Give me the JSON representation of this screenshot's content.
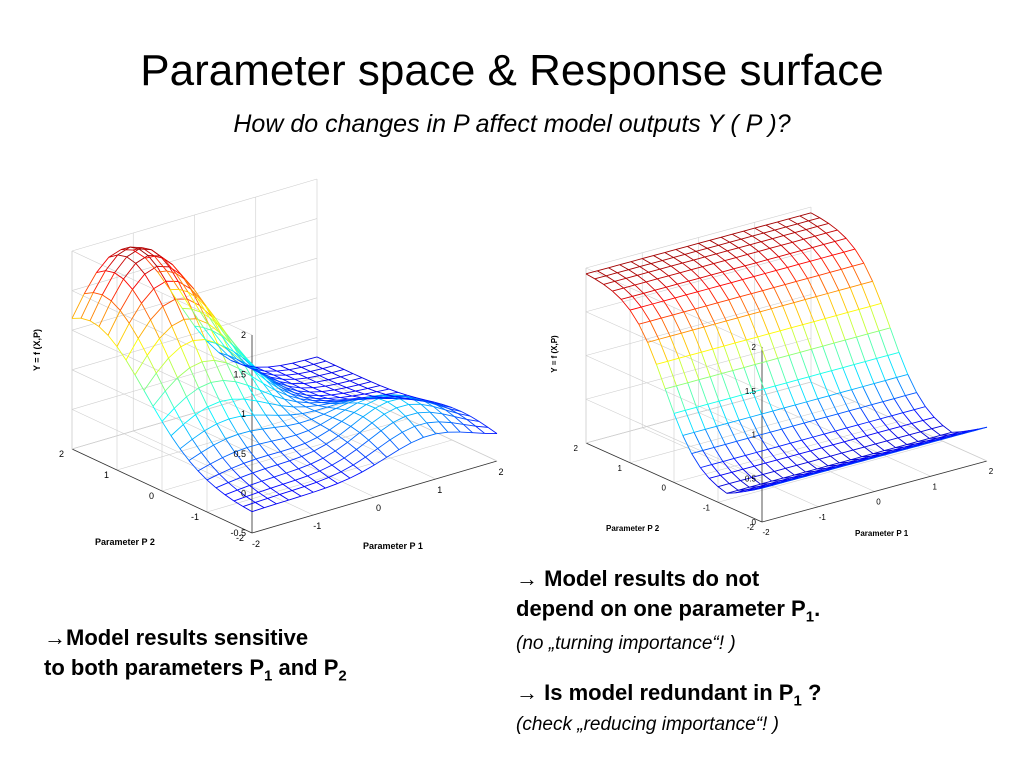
{
  "slide": {
    "title": "Parameter space & Response surface",
    "subtitle": "How do changes in P affect model outputs Y ( P )?"
  },
  "chart_data": [
    {
      "type": "surface",
      "zlabel": "Y = f (X,P)",
      "xlabel": "Parameter P 1",
      "ylabel": "Parameter P 2",
      "xticks": [
        "-2",
        "-1",
        "0",
        "1",
        "2"
      ],
      "yticks": [
        "-2",
        "-1",
        "0",
        "1",
        "2"
      ],
      "zticks": [
        "-0.5",
        "0",
        "0.5",
        "1",
        "1.5",
        "2"
      ],
      "zlim": [
        -0.5,
        2
      ],
      "xlim": [
        -2,
        2
      ],
      "ylim": [
        -2,
        2
      ],
      "colormap": "jet",
      "grid": true
    },
    {
      "type": "surface",
      "zlabel": "Y = f (X,P)",
      "xlabel": "Parameter P 1",
      "ylabel": "Parameter P 2",
      "xticks": [
        "-2",
        "-1",
        "0",
        "1",
        "2"
      ],
      "yticks": [
        "-2",
        "-1",
        "0",
        "1",
        "2"
      ],
      "zticks": [
        "0",
        "0.5",
        "1",
        "1.5",
        "2"
      ],
      "zlim": [
        0,
        2
      ],
      "xlim": [
        -2,
        2
      ],
      "ylim": [
        -2,
        2
      ],
      "colormap": "jet",
      "grid": true
    }
  ],
  "notes": {
    "left": {
      "arrow": "→",
      "line1": "Model results sensitive",
      "line2_pre": "to both parameters P",
      "sub1": "1",
      "mid": " and P",
      "sub2": "2"
    },
    "right1": {
      "arrow": "→",
      "line1": " Model results do not",
      "line2_pre": "depend on one parameter P",
      "sub": "1",
      "line2_post": ".",
      "ital": "(no „turning importance“! )"
    },
    "right2": {
      "arrow": "→",
      "line_pre": " Is model redundant in P",
      "sub": "1",
      "line_post": " ?",
      "ital": "(check „reducing importance“! )"
    }
  }
}
